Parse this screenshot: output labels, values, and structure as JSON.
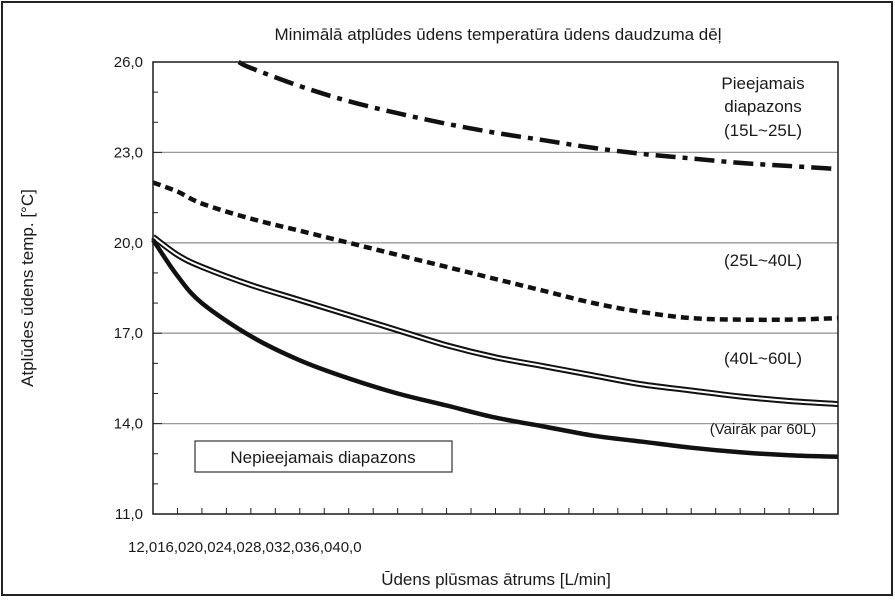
{
  "chart_data": {
    "type": "line",
    "title": "Minimālā atplūdes ūdens temperatūra ūdens daudzuma dēļ",
    "xlabel": "Ūdens plūsmas ātrums [L/min]",
    "ylabel": "Atplūdes ūdens temp. [°C]",
    "xlim": [
      12,
      40
    ],
    "ylim": [
      11,
      26
    ],
    "x_tick_labels": "12,016,020,024,028,032,036,040,0",
    "y_ticks": [
      11,
      14,
      17,
      20,
      23,
      26
    ],
    "y_tick_labels": [
      "11,0",
      "14,0",
      "17,0",
      "20,0",
      "23,0",
      "26,0"
    ],
    "grid": true,
    "x": [
      12,
      13,
      14,
      16,
      18,
      20,
      22,
      24,
      26,
      28,
      30,
      32,
      34,
      36,
      38,
      40
    ],
    "series": [
      {
        "label": "(15L~25L)",
        "style": "dash-dot",
        "x": [
          15.5,
          16,
          18,
          20,
          22,
          24,
          26,
          28,
          30,
          32,
          34,
          36,
          38,
          40
        ],
        "values": [
          26.0,
          25.8,
          25.2,
          24.7,
          24.3,
          23.95,
          23.65,
          23.4,
          23.15,
          22.95,
          22.8,
          22.65,
          22.55,
          22.45
        ]
      },
      {
        "label": "(25L~40L)",
        "style": "dashed",
        "values": [
          22.0,
          21.7,
          21.3,
          20.8,
          20.4,
          20.0,
          19.6,
          19.2,
          18.8,
          18.4,
          18.0,
          17.7,
          17.5,
          17.45,
          17.45,
          17.5
        ]
      },
      {
        "label": "(40L~60L)",
        "style": "double",
        "values": [
          20.2,
          19.6,
          19.2,
          18.6,
          18.1,
          17.6,
          17.1,
          16.6,
          16.2,
          15.9,
          15.6,
          15.3,
          15.1,
          14.9,
          14.75,
          14.65
        ]
      },
      {
        "label": "(Vairāk par 60L)",
        "style": "thick",
        "values": [
          20.1,
          18.9,
          18.0,
          16.9,
          16.1,
          15.5,
          15.0,
          14.6,
          14.2,
          13.9,
          13.6,
          13.4,
          13.2,
          13.05,
          12.95,
          12.9
        ]
      }
    ],
    "annotations": {
      "acceptable_line1": "Pieejamais",
      "acceptable_line2": "diapazons",
      "acceptable_line3": "(15L~25L)",
      "label_25_40": "(25L~40L)",
      "label_40_60": "(40L~60L)",
      "label_60": "(Vairāk par 60L)",
      "unacceptable": "Nepieejamais diapazons"
    }
  }
}
